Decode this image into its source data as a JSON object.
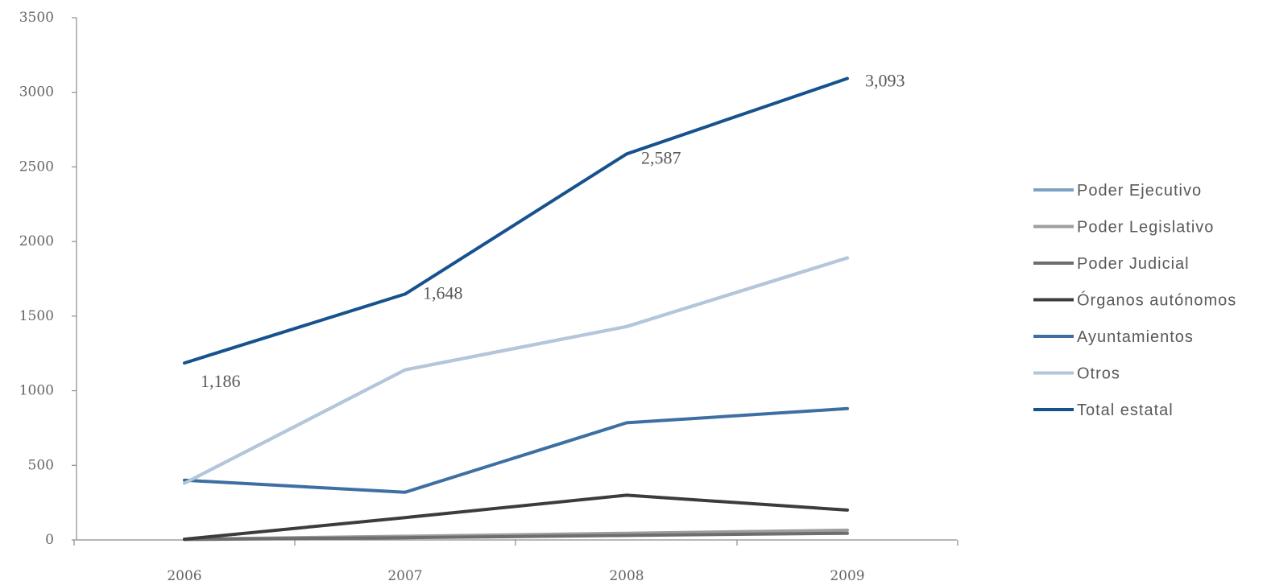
{
  "chart_data": {
    "type": "line",
    "title": "",
    "xlabel": "",
    "ylabel": "",
    "categories": [
      "2006",
      "2007",
      "2008",
      "2009"
    ],
    "ylim": [
      0,
      3500
    ],
    "yticks": [
      "0",
      "500",
      "1000",
      "1500",
      "2000",
      "2500",
      "3000",
      "3500"
    ],
    "grid": false,
    "legend_position": "right",
    "series": [
      {
        "name": "Poder Ejecutivo",
        "color": "#7ea0c3",
        "values": [
          380,
          1140,
          1430,
          1890
        ]
      },
      {
        "name": "Poder Legislativo",
        "color": "#9e9e9e",
        "values": [
          5,
          25,
          45,
          65
        ]
      },
      {
        "name": "Poder Judicial",
        "color": "#6e6e6e",
        "values": [
          3,
          15,
          30,
          45
        ]
      },
      {
        "name": "Órganos autónomos",
        "color": "#3c3c3c",
        "values": [
          5,
          150,
          300,
          200
        ]
      },
      {
        "name": "Ayuntamientos",
        "color": "#3d6fa3",
        "values": [
          400,
          320,
          785,
          880
        ]
      },
      {
        "name": "Otros",
        "color": "#b3c6da",
        "values": [
          380,
          1140,
          1430,
          1890
        ]
      },
      {
        "name": "Total estatal",
        "color": "#16528e",
        "values": [
          1186,
          1648,
          2587,
          3093
        ]
      }
    ],
    "data_labels": {
      "series": "Total estatal",
      "labels": [
        "1,186",
        "1,648",
        "2,587",
        "3,093"
      ]
    }
  }
}
